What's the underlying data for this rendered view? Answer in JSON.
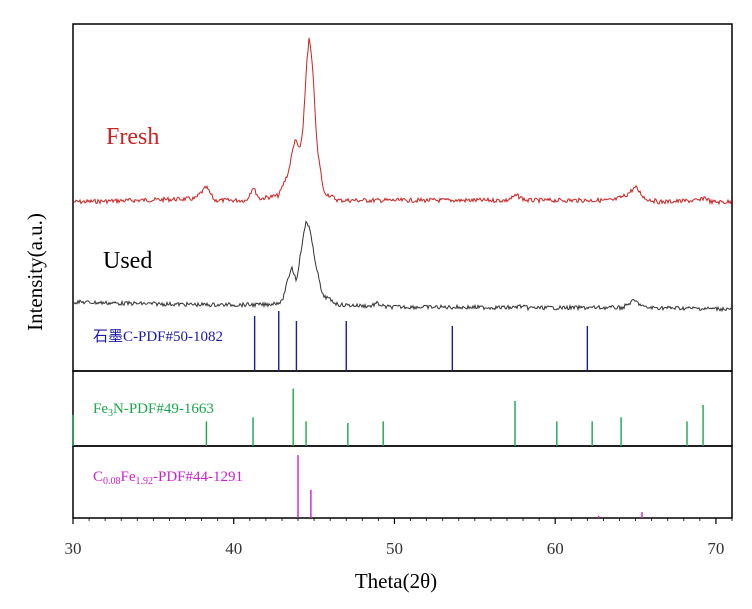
{
  "chart_data": {
    "type": "line",
    "title": "",
    "xlabel": "Theta(2θ)",
    "ylabel": "Intensity(a.u.)",
    "xlim": [
      30,
      71
    ],
    "xticks": [
      30,
      40,
      50,
      60,
      70
    ],
    "series": [
      {
        "name": "Fresh",
        "color": "#cc2222",
        "points": [
          [
            30,
            0.0
          ],
          [
            37.6,
            0.02
          ],
          [
            38.3,
            0.09
          ],
          [
            38.8,
            0.01
          ],
          [
            40.8,
            0.01
          ],
          [
            41.2,
            0.09
          ],
          [
            41.6,
            0.02
          ],
          [
            42.8,
            0.04
          ],
          [
            43.4,
            0.18
          ],
          [
            43.8,
            0.38
          ],
          [
            44.1,
            0.32
          ],
          [
            44.3,
            0.42
          ],
          [
            44.55,
            0.86
          ],
          [
            44.7,
            1.0
          ],
          [
            44.9,
            0.82
          ],
          [
            45.2,
            0.32
          ],
          [
            45.6,
            0.06
          ],
          [
            46.5,
            0.01
          ],
          [
            57.0,
            0.01
          ],
          [
            57.6,
            0.04
          ],
          [
            58.2,
            0.01
          ],
          [
            63.6,
            0.01
          ],
          [
            64.4,
            0.04
          ],
          [
            65.0,
            0.09
          ],
          [
            65.6,
            0.02
          ],
          [
            66.5,
            0.0
          ],
          [
            69.0,
            0.01
          ],
          [
            69.3,
            0.03
          ],
          [
            69.7,
            0.0
          ],
          [
            71,
            0.0
          ]
        ]
      },
      {
        "name": "Used",
        "color": "#333333",
        "points": [
          [
            30,
            0.05
          ],
          [
            33,
            0.04
          ],
          [
            36,
            0.035
          ],
          [
            38,
            0.03
          ],
          [
            40,
            0.03
          ],
          [
            42,
            0.03
          ],
          [
            43,
            0.05
          ],
          [
            43.6,
            0.3
          ],
          [
            43.9,
            0.2
          ],
          [
            44.2,
            0.42
          ],
          [
            44.5,
            0.62
          ],
          [
            44.7,
            0.58
          ],
          [
            45.0,
            0.38
          ],
          [
            45.5,
            0.1
          ],
          [
            46.5,
            0.03
          ],
          [
            48.5,
            0.02
          ],
          [
            48.9,
            0.04
          ],
          [
            49.4,
            0.015
          ],
          [
            57.4,
            0.01
          ],
          [
            57.8,
            0.02
          ],
          [
            58.3,
            0.008
          ],
          [
            64.2,
            0.01
          ],
          [
            64.9,
            0.06
          ],
          [
            65.6,
            0.01
          ],
          [
            71,
            0.0
          ]
        ]
      }
    ],
    "references": [
      {
        "name": "石墨C-PDF#50-1082",
        "color": "#1a1aa8",
        "lines": [
          [
            41.3,
            0.55
          ],
          [
            42.8,
            0.6
          ],
          [
            43.9,
            0.5
          ],
          [
            47.0,
            0.5
          ],
          [
            53.6,
            0.45
          ],
          [
            62.0,
            0.45
          ]
        ]
      },
      {
        "name": "Fe3N-PDF#49-1663",
        "color": "#1aa64a",
        "lines": [
          [
            30.0,
            0.38
          ],
          [
            38.3,
            0.3
          ],
          [
            41.2,
            0.35
          ],
          [
            43.7,
            0.7
          ],
          [
            44.5,
            0.3
          ],
          [
            47.1,
            0.28
          ],
          [
            49.3,
            0.3
          ],
          [
            57.5,
            0.55
          ],
          [
            60.1,
            0.3
          ],
          [
            62.3,
            0.3
          ],
          [
            64.1,
            0.35
          ],
          [
            68.2,
            0.3
          ],
          [
            69.2,
            0.5
          ]
        ]
      },
      {
        "name": "C0.08Fe1.92-PDF#44-1291",
        "color": "#cc22cc",
        "lines": [
          [
            44.0,
            0.85
          ],
          [
            44.8,
            0.38
          ],
          [
            62.7,
            0.03
          ],
          [
            65.4,
            0.08
          ]
        ]
      }
    ]
  },
  "labels": {
    "fresh": "Fresh",
    "used": "Used",
    "graphite_ref": "石墨C-PDF#50-1082",
    "fe3n_ref_pre": "Fe",
    "fe3n_ref_sub": "3",
    "fe3n_ref_post": "N-PDF#49-1663",
    "cfe_ref_c": "C",
    "cfe_ref_sub1": "0.08",
    "cfe_ref_fe": "Fe",
    "cfe_ref_sub2": "1.92",
    "cfe_ref_post": "-PDF#44-1291"
  }
}
